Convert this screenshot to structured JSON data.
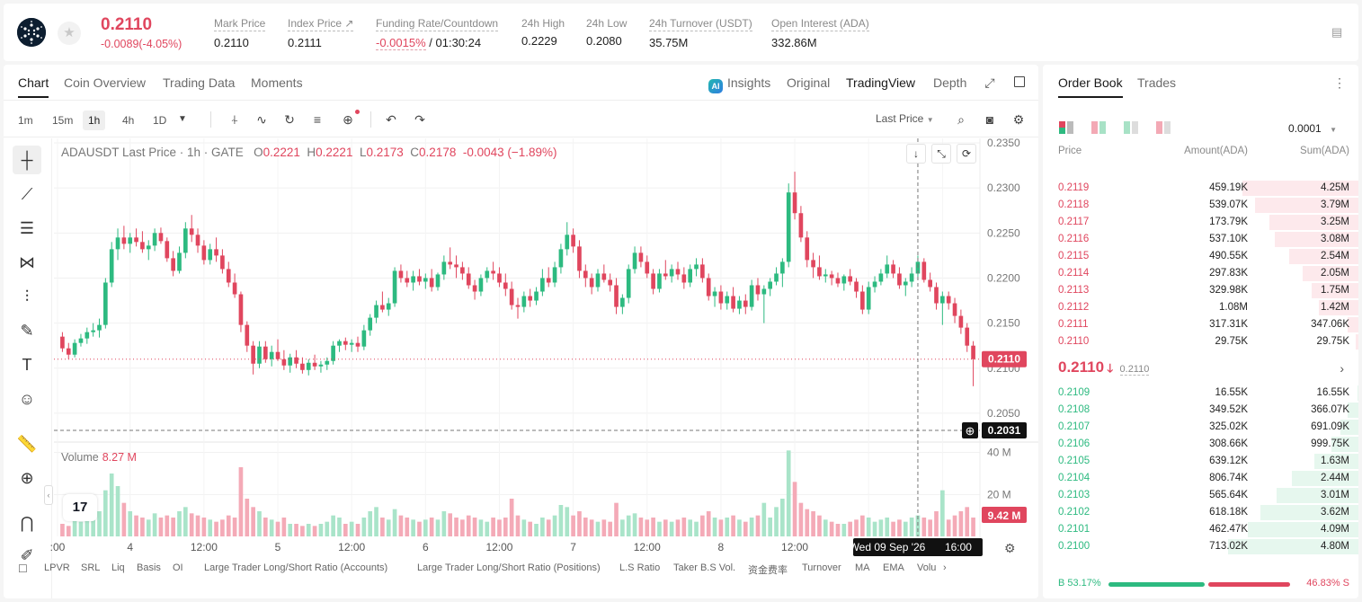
{
  "ticker": {
    "last_price": "0.2110",
    "change": "-0.0089(-4.05%)",
    "stats": [
      {
        "label": "Mark Price",
        "value": "0.2110"
      },
      {
        "label": "Index Price ↗",
        "value": "0.2111"
      },
      {
        "label": "Funding Rate/Countdown",
        "value_neg": "-0.0015%",
        "value": " / 01:30:24"
      },
      {
        "label": "24h High",
        "value": "0.2229"
      },
      {
        "label": "24h Low",
        "value": "0.2080"
      },
      {
        "label": "24h Turnover (USDT)",
        "value": "35.75M"
      },
      {
        "label": "Open Interest (ADA)",
        "value": "332.86M"
      }
    ]
  },
  "tabs": [
    "Chart",
    "Coin Overview",
    "Trading Data",
    "Moments"
  ],
  "views": {
    "insights": "Insights",
    "ai": "AI",
    "original": "Original",
    "tradingview": "TradingView",
    "depth": "Depth"
  },
  "timeframes": [
    "1m",
    "15m",
    "1h",
    "4h",
    "1D"
  ],
  "active_timeframe": "1h",
  "price_source": "Last Price",
  "legend": {
    "symbol": "ADAUSDT Last Price · 1h · GATE",
    "o_label": "O",
    "o": "0.2221",
    "h_label": "H",
    "h": "0.2221",
    "l_label": "L",
    "l": "0.2173",
    "c_label": "C",
    "c": "0.2178",
    "chg": "-0.0043 (−1.89%)"
  },
  "volume": {
    "label": "Volume",
    "value": "8.27 M"
  },
  "price_axis": [
    "0.2350",
    "0.2300",
    "0.2250",
    "0.2200",
    "0.2150",
    "0.2100",
    "0.2050"
  ],
  "volume_axis": [
    "40 M",
    "20 M"
  ],
  "time_axis": [
    ":00",
    "4",
    "12:00",
    "5",
    "12:00",
    "6",
    "12:00",
    "7",
    "12:00",
    "8",
    "12:00",
    "9",
    "12:00"
  ],
  "last_price_tag": "0.2110",
  "crosshair_price_tag": "0.2031",
  "volume_tag": "9.42 M",
  "crosshair_time": "Wed 09 Sep '26",
  "crosshair_hour": "16:00",
  "tv_logo": "17",
  "indicators": [
    "LPVR",
    "SRL",
    "Liq",
    "Basis",
    "OI",
    "Large Trader Long/Short Ratio (Accounts)",
    "Large Trader Long/Short Ratio (Positions)",
    "L.S Ratio",
    "Taker B.S Vol.",
    "资金费率",
    "Turnover",
    "MA",
    "EMA",
    "Volu"
  ],
  "chart_data": {
    "type": "candlestick",
    "symbol": "ADAUSDT",
    "interval": "1h",
    "ylim": [
      0.202,
      0.2355
    ],
    "volume_ylim": [
      0,
      45
    ],
    "volume_unit": "M",
    "last_price": 0.211,
    "crosshair_price": 0.2031,
    "candles": [
      [
        0.2135,
        0.214,
        0.2118,
        0.2122,
        6
      ],
      [
        0.2122,
        0.2128,
        0.211,
        0.2115,
        5
      ],
      [
        0.2115,
        0.2132,
        0.2112,
        0.2128,
        9
      ],
      [
        0.2128,
        0.2138,
        0.2124,
        0.2133,
        7
      ],
      [
        0.2133,
        0.2145,
        0.2127,
        0.214,
        10
      ],
      [
        0.214,
        0.215,
        0.2135,
        0.2142,
        8
      ],
      [
        0.2142,
        0.2155,
        0.2134,
        0.2148,
        12
      ],
      [
        0.2148,
        0.22,
        0.2144,
        0.2195,
        22
      ],
      [
        0.2195,
        0.224,
        0.219,
        0.2232,
        30
      ],
      [
        0.2232,
        0.2255,
        0.222,
        0.2245,
        24
      ],
      [
        0.2245,
        0.2258,
        0.2232,
        0.2238,
        16
      ],
      [
        0.2238,
        0.225,
        0.2228,
        0.2245,
        12
      ],
      [
        0.2245,
        0.2255,
        0.2235,
        0.224,
        10
      ],
      [
        0.224,
        0.2252,
        0.2228,
        0.2232,
        9
      ],
      [
        0.2232,
        0.2242,
        0.222,
        0.2236,
        8
      ],
      [
        0.2236,
        0.2255,
        0.223,
        0.225,
        11
      ],
      [
        0.225,
        0.2256,
        0.2238,
        0.2241,
        9
      ],
      [
        0.2241,
        0.2245,
        0.2218,
        0.2222,
        10
      ],
      [
        0.2222,
        0.223,
        0.2202,
        0.2208,
        9
      ],
      [
        0.2208,
        0.2235,
        0.2205,
        0.2228,
        12
      ],
      [
        0.2228,
        0.2262,
        0.2222,
        0.2255,
        14
      ],
      [
        0.2255,
        0.227,
        0.224,
        0.2248,
        11
      ],
      [
        0.2248,
        0.2255,
        0.2228,
        0.2236,
        10
      ],
      [
        0.2236,
        0.2242,
        0.2215,
        0.222,
        9
      ],
      [
        0.222,
        0.2238,
        0.2215,
        0.2232,
        8
      ],
      [
        0.2232,
        0.2245,
        0.2218,
        0.2225,
        7
      ],
      [
        0.2225,
        0.2232,
        0.2205,
        0.221,
        8
      ],
      [
        0.221,
        0.2218,
        0.219,
        0.2195,
        10
      ],
      [
        0.2195,
        0.2205,
        0.2178,
        0.2182,
        9
      ],
      [
        0.2182,
        0.2185,
        0.214,
        0.2148,
        33
      ],
      [
        0.2148,
        0.2152,
        0.2118,
        0.2125,
        18
      ],
      [
        0.2125,
        0.213,
        0.2093,
        0.2105,
        14
      ],
      [
        0.2105,
        0.213,
        0.21,
        0.2124,
        12
      ],
      [
        0.2124,
        0.213,
        0.2106,
        0.211,
        9
      ],
      [
        0.211,
        0.2125,
        0.2102,
        0.2118,
        8
      ],
      [
        0.2118,
        0.2132,
        0.2108,
        0.211,
        7
      ],
      [
        0.211,
        0.212,
        0.2098,
        0.2103,
        9
      ],
      [
        0.2103,
        0.2116,
        0.2095,
        0.2112,
        6
      ],
      [
        0.2112,
        0.212,
        0.21,
        0.2105,
        6
      ],
      [
        0.2105,
        0.2112,
        0.2094,
        0.2098,
        5
      ],
      [
        0.2098,
        0.211,
        0.2092,
        0.2106,
        6
      ],
      [
        0.2106,
        0.2115,
        0.2098,
        0.2102,
        5
      ],
      [
        0.2102,
        0.2108,
        0.2095,
        0.2104,
        6
      ],
      [
        0.2104,
        0.2112,
        0.2098,
        0.2108,
        7
      ],
      [
        0.2108,
        0.213,
        0.2104,
        0.2125,
        10
      ],
      [
        0.2125,
        0.2132,
        0.2118,
        0.213,
        9
      ],
      [
        0.213,
        0.2134,
        0.212,
        0.2126,
        6
      ],
      [
        0.2126,
        0.2132,
        0.2118,
        0.2128,
        7
      ],
      [
        0.2128,
        0.2135,
        0.2118,
        0.2124,
        6
      ],
      [
        0.2124,
        0.2148,
        0.212,
        0.2142,
        9
      ],
      [
        0.2142,
        0.216,
        0.2136,
        0.2156,
        12
      ],
      [
        0.2156,
        0.2175,
        0.215,
        0.217,
        14
      ],
      [
        0.217,
        0.2185,
        0.2162,
        0.2165,
        9
      ],
      [
        0.2165,
        0.2178,
        0.2158,
        0.2172,
        8
      ],
      [
        0.2172,
        0.2212,
        0.2168,
        0.2208,
        13
      ],
      [
        0.2208,
        0.2215,
        0.2195,
        0.22,
        10
      ],
      [
        0.22,
        0.2208,
        0.219,
        0.2195,
        9
      ],
      [
        0.2195,
        0.2208,
        0.2186,
        0.2202,
        8
      ],
      [
        0.2202,
        0.221,
        0.2192,
        0.2196,
        7
      ],
      [
        0.2196,
        0.2205,
        0.2188,
        0.22,
        8
      ],
      [
        0.22,
        0.221,
        0.2185,
        0.219,
        9
      ],
      [
        0.219,
        0.2206,
        0.2186,
        0.2204,
        8
      ],
      [
        0.2204,
        0.2225,
        0.2198,
        0.2218,
        12
      ],
      [
        0.2218,
        0.2234,
        0.221,
        0.2215,
        11
      ],
      [
        0.2215,
        0.2225,
        0.22,
        0.2212,
        9
      ],
      [
        0.2212,
        0.2218,
        0.2198,
        0.2205,
        8
      ],
      [
        0.2205,
        0.2212,
        0.2188,
        0.2192,
        10
      ],
      [
        0.2192,
        0.2198,
        0.2176,
        0.2185,
        9
      ],
      [
        0.2185,
        0.2204,
        0.218,
        0.22,
        8
      ],
      [
        0.22,
        0.2212,
        0.2195,
        0.2208,
        7
      ],
      [
        0.2208,
        0.2218,
        0.2198,
        0.2205,
        9
      ],
      [
        0.2205,
        0.2212,
        0.219,
        0.2195,
        8
      ],
      [
        0.2195,
        0.2205,
        0.218,
        0.2188,
        9
      ],
      [
        0.2188,
        0.2196,
        0.2165,
        0.217,
        18
      ],
      [
        0.217,
        0.2178,
        0.2155,
        0.2168,
        10
      ],
      [
        0.2168,
        0.2185,
        0.2162,
        0.218,
        8
      ],
      [
        0.218,
        0.2188,
        0.2168,
        0.2175,
        7
      ],
      [
        0.2175,
        0.219,
        0.217,
        0.2185,
        6
      ],
      [
        0.2185,
        0.221,
        0.218,
        0.22,
        9
      ],
      [
        0.22,
        0.2212,
        0.219,
        0.2195,
        8
      ],
      [
        0.2195,
        0.2218,
        0.219,
        0.2212,
        10
      ],
      [
        0.2212,
        0.2238,
        0.2205,
        0.2232,
        15
      ],
      [
        0.2232,
        0.2262,
        0.2225,
        0.2248,
        14
      ],
      [
        0.2248,
        0.2255,
        0.2228,
        0.2235,
        10
      ],
      [
        0.2235,
        0.2242,
        0.22,
        0.2208,
        12
      ],
      [
        0.2208,
        0.2215,
        0.219,
        0.22,
        9
      ],
      [
        0.22,
        0.2205,
        0.2182,
        0.219,
        8
      ],
      [
        0.219,
        0.221,
        0.2185,
        0.2205,
        7
      ],
      [
        0.2205,
        0.2215,
        0.2195,
        0.2198,
        8
      ],
      [
        0.2198,
        0.2205,
        0.2185,
        0.2192,
        7
      ],
      [
        0.2192,
        0.22,
        0.216,
        0.2168,
        16
      ],
      [
        0.2168,
        0.2182,
        0.216,
        0.2178,
        8
      ],
      [
        0.2178,
        0.2215,
        0.2172,
        0.221,
        10
      ],
      [
        0.221,
        0.2235,
        0.2205,
        0.2228,
        11
      ],
      [
        0.2228,
        0.2235,
        0.2212,
        0.2218,
        9
      ],
      [
        0.2218,
        0.2225,
        0.22,
        0.2205,
        8
      ],
      [
        0.2205,
        0.221,
        0.2182,
        0.2188,
        9
      ],
      [
        0.2188,
        0.221,
        0.2184,
        0.2205,
        7
      ],
      [
        0.2205,
        0.222,
        0.2198,
        0.2202,
        8
      ],
      [
        0.2202,
        0.2215,
        0.2195,
        0.221,
        7
      ],
      [
        0.221,
        0.2218,
        0.2198,
        0.2204,
        8
      ],
      [
        0.2204,
        0.2212,
        0.2188,
        0.2195,
        9
      ],
      [
        0.2195,
        0.2215,
        0.219,
        0.221,
        8
      ],
      [
        0.221,
        0.2222,
        0.2202,
        0.2215,
        7
      ],
      [
        0.2215,
        0.2222,
        0.2195,
        0.22,
        10
      ],
      [
        0.22,
        0.2205,
        0.2175,
        0.218,
        12
      ],
      [
        0.218,
        0.219,
        0.2168,
        0.2185,
        9
      ],
      [
        0.2185,
        0.2192,
        0.2165,
        0.2172,
        8
      ],
      [
        0.2172,
        0.2185,
        0.2165,
        0.218,
        9
      ],
      [
        0.218,
        0.219,
        0.2162,
        0.2166,
        10
      ],
      [
        0.2166,
        0.218,
        0.216,
        0.2175,
        8
      ],
      [
        0.2175,
        0.2182,
        0.216,
        0.2168,
        7
      ],
      [
        0.2168,
        0.2198,
        0.2164,
        0.2192,
        9
      ],
      [
        0.2192,
        0.22,
        0.2175,
        0.2182,
        10
      ],
      [
        0.2182,
        0.2192,
        0.215,
        0.2188,
        16
      ],
      [
        0.2188,
        0.22,
        0.218,
        0.2196,
        9
      ],
      [
        0.2196,
        0.2212,
        0.2192,
        0.2205,
        14
      ],
      [
        0.2205,
        0.2222,
        0.219,
        0.2218,
        18
      ],
      [
        0.2218,
        0.2305,
        0.2212,
        0.2295,
        41
      ],
      [
        0.2295,
        0.2318,
        0.2265,
        0.2272,
        26
      ],
      [
        0.2272,
        0.228,
        0.224,
        0.2245,
        16
      ],
      [
        0.2245,
        0.2252,
        0.2212,
        0.222,
        13
      ],
      [
        0.222,
        0.2228,
        0.22,
        0.2212,
        12
      ],
      [
        0.2212,
        0.2225,
        0.2198,
        0.2202,
        10
      ],
      [
        0.2202,
        0.221,
        0.2195,
        0.2204,
        8
      ],
      [
        0.2204,
        0.2208,
        0.2192,
        0.22,
        7
      ],
      [
        0.22,
        0.2206,
        0.219,
        0.2194,
        6
      ],
      [
        0.2194,
        0.2204,
        0.2186,
        0.2202,
        6
      ],
      [
        0.2202,
        0.221,
        0.2192,
        0.2196,
        7
      ],
      [
        0.2196,
        0.22,
        0.2178,
        0.2185,
        8
      ],
      [
        0.2185,
        0.2192,
        0.216,
        0.2165,
        10
      ],
      [
        0.2165,
        0.2196,
        0.216,
        0.219,
        9
      ],
      [
        0.219,
        0.2202,
        0.2184,
        0.2196,
        7
      ],
      [
        0.2196,
        0.221,
        0.2192,
        0.2205,
        8
      ],
      [
        0.2205,
        0.2225,
        0.22,
        0.2215,
        9
      ],
      [
        0.2215,
        0.222,
        0.22,
        0.2205,
        7
      ],
      [
        0.2205,
        0.2212,
        0.2188,
        0.2192,
        8
      ],
      [
        0.2192,
        0.22,
        0.218,
        0.2196,
        7
      ],
      [
        0.2196,
        0.2212,
        0.219,
        0.2205,
        9
      ],
      [
        0.2205,
        0.2225,
        0.2198,
        0.2218,
        10
      ],
      [
        0.2218,
        0.2222,
        0.2195,
        0.2198,
        9
      ],
      [
        0.2198,
        0.2206,
        0.2185,
        0.219,
        8
      ],
      [
        0.219,
        0.2195,
        0.2165,
        0.2172,
        12
      ],
      [
        0.2172,
        0.2185,
        0.2148,
        0.218,
        22
      ],
      [
        0.218,
        0.2185,
        0.2165,
        0.2172,
        8
      ],
      [
        0.2172,
        0.2178,
        0.215,
        0.2158,
        10
      ],
      [
        0.2158,
        0.2165,
        0.2138,
        0.2145,
        12
      ],
      [
        0.2145,
        0.215,
        0.2118,
        0.2125,
        14
      ],
      [
        0.2125,
        0.213,
        0.208,
        0.211,
        9
      ]
    ],
    "x_ticks": [
      ":00",
      "4",
      "12:00",
      "5",
      "12:00",
      "6",
      "12:00",
      "7",
      "12:00",
      "8",
      "12:00",
      "9",
      "12:00"
    ],
    "up_color": "#2dba80",
    "down_color": "#e0465e"
  },
  "orderbook": {
    "tabs": [
      "Order Book",
      "Trades"
    ],
    "precision": "0.0001",
    "headers": {
      "price": "Price",
      "amount": "Amount(ADA)",
      "sum": "Sum(ADA)"
    },
    "asks": [
      {
        "price": "0.2119",
        "amount": "459.19K",
        "sum": "4.25M",
        "depth": 0.89
      },
      {
        "price": "0.2118",
        "amount": "539.07K",
        "sum": "3.79M",
        "depth": 0.79
      },
      {
        "price": "0.2117",
        "amount": "173.79K",
        "sum": "3.25M",
        "depth": 0.68
      },
      {
        "price": "0.2116",
        "amount": "537.10K",
        "sum": "3.08M",
        "depth": 0.64
      },
      {
        "price": "0.2115",
        "amount": "490.55K",
        "sum": "2.54M",
        "depth": 0.53
      },
      {
        "price": "0.2114",
        "amount": "297.83K",
        "sum": "2.05M",
        "depth": 0.43
      },
      {
        "price": "0.2113",
        "amount": "329.98K",
        "sum": "1.75M",
        "depth": 0.36
      },
      {
        "price": "0.2112",
        "amount": "1.08M",
        "sum": "1.42M",
        "depth": 0.3
      },
      {
        "price": "0.2111",
        "amount": "317.31K",
        "sum": "347.06K",
        "depth": 0.08
      },
      {
        "price": "0.2110",
        "amount": "29.75K",
        "sum": "29.75K",
        "depth": 0.02
      }
    ],
    "mid_price": "0.2110",
    "mid_arrow": "🡓",
    "mark_price": "0.2110",
    "bids": [
      {
        "price": "0.2109",
        "amount": "16.55K",
        "sum": "16.55K",
        "depth": 0.01
      },
      {
        "price": "0.2108",
        "amount": "349.52K",
        "sum": "366.07K",
        "depth": 0.08
      },
      {
        "price": "0.2107",
        "amount": "325.02K",
        "sum": "691.09K",
        "depth": 0.14
      },
      {
        "price": "0.2106",
        "amount": "308.66K",
        "sum": "999.75K",
        "depth": 0.21
      },
      {
        "price": "0.2105",
        "amount": "639.12K",
        "sum": "1.63M",
        "depth": 0.34
      },
      {
        "price": "0.2104",
        "amount": "806.74K",
        "sum": "2.44M",
        "depth": 0.51
      },
      {
        "price": "0.2103",
        "amount": "565.64K",
        "sum": "3.01M",
        "depth": 0.63
      },
      {
        "price": "0.2102",
        "amount": "618.18K",
        "sum": "3.62M",
        "depth": 0.75
      },
      {
        "price": "0.2101",
        "amount": "462.47K",
        "sum": "4.09M",
        "depth": 0.85
      },
      {
        "price": "0.2100",
        "amount": "713.02K",
        "sum": "4.80M",
        "depth": 1.0
      }
    ],
    "buy_ratio": "B 53.17%",
    "sell_ratio": "46.83% S",
    "buy_fraction": 0.5317
  }
}
